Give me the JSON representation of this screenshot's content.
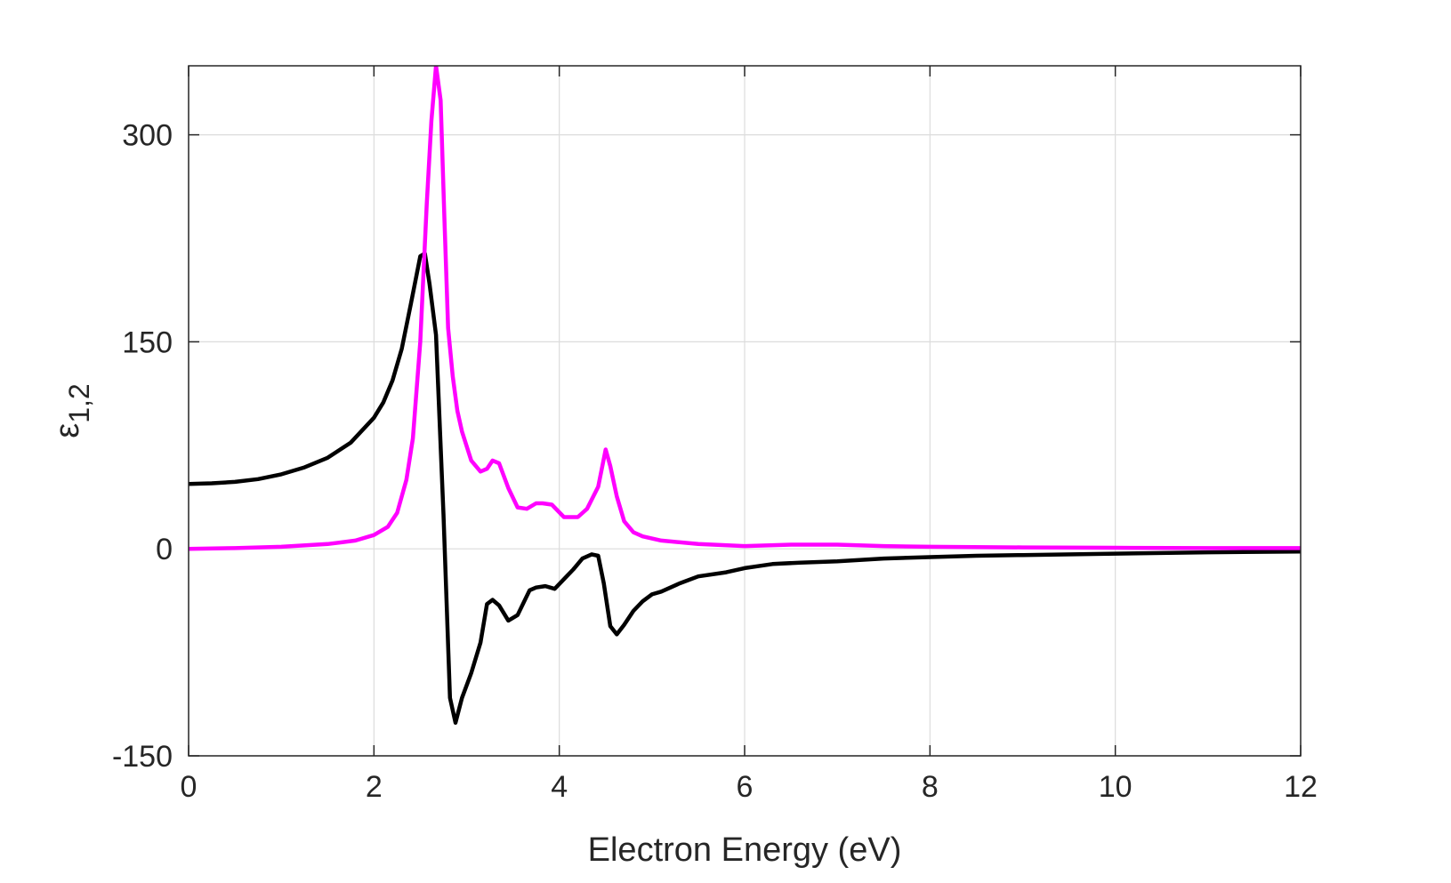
{
  "chart_data": {
    "type": "line",
    "title": "",
    "xlabel": "Electron Energy (eV)",
    "ylabel": "ε",
    "ylabel_subscript": "1,2",
    "xlim": [
      0,
      12
    ],
    "ylim": [
      -150,
      350
    ],
    "xticks": [
      0,
      2,
      4,
      6,
      8,
      10,
      12
    ],
    "xtick_labels": [
      "0",
      "2",
      "4",
      "6",
      "8",
      "10",
      "12"
    ],
    "yticks": [
      -150,
      0,
      150,
      300
    ],
    "ytick_labels": [
      "-150",
      "0",
      "150",
      "300"
    ],
    "grid": true,
    "legend": "none",
    "series": [
      {
        "color": "#000000",
        "x": [
          0,
          0.25,
          0.5,
          0.75,
          1.0,
          1.25,
          1.5,
          1.75,
          2.0,
          2.1,
          2.2,
          2.3,
          2.4,
          2.5,
          2.55,
          2.6,
          2.67,
          2.75,
          2.82,
          2.88,
          2.95,
          3.05,
          3.15,
          3.22,
          3.28,
          3.35,
          3.45,
          3.55,
          3.68,
          3.75,
          3.85,
          3.95,
          4.05,
          4.15,
          4.25,
          4.35,
          4.42,
          4.48,
          4.55,
          4.62,
          4.7,
          4.8,
          4.9,
          5.0,
          5.1,
          5.3,
          5.5,
          5.8,
          6.0,
          6.3,
          6.6,
          7.0,
          7.5,
          8.0,
          8.5,
          9.0,
          10.0,
          11.0,
          12.0
        ],
        "y": [
          47,
          47.5,
          48.5,
          50.5,
          54,
          59,
          66,
          77,
          95,
          106,
          122,
          145,
          178,
          212,
          214,
          192,
          155,
          25,
          -108,
          -126,
          -108,
          -90,
          -68,
          -40,
          -37,
          -41,
          -52,
          -48,
          -30,
          -28,
          -27,
          -29,
          -22,
          -15,
          -7,
          -4,
          -5,
          -25,
          -56,
          -62,
          -55,
          -45,
          -38,
          -33,
          -31,
          -25,
          -20,
          -17,
          -14,
          -11,
          -10,
          -9,
          -7,
          -6,
          -5,
          -4.5,
          -3.5,
          -2.5,
          -2
        ]
      },
      {
        "color": "#ff00ff",
        "x": [
          0,
          0.5,
          1.0,
          1.5,
          1.8,
          2.0,
          2.15,
          2.25,
          2.35,
          2.42,
          2.5,
          2.57,
          2.62,
          2.67,
          2.72,
          2.76,
          2.8,
          2.85,
          2.9,
          2.95,
          3.05,
          3.15,
          3.22,
          3.28,
          3.35,
          3.45,
          3.55,
          3.65,
          3.75,
          3.82,
          3.92,
          4.05,
          4.2,
          4.3,
          4.42,
          4.5,
          4.55,
          4.62,
          4.7,
          4.8,
          4.9,
          5.1,
          5.5,
          6.0,
          6.5,
          7.0,
          7.5,
          8.0,
          9.0,
          10.0,
          11.0,
          12.0
        ],
        "y": [
          0,
          0.5,
          1.5,
          3.5,
          6,
          10,
          16,
          26,
          50,
          80,
          150,
          250,
          310,
          350,
          325,
          240,
          160,
          125,
          100,
          85,
          64,
          56,
          58,
          64,
          62,
          44,
          30,
          29,
          33,
          33,
          32,
          23,
          23,
          29,
          45,
          72,
          60,
          38,
          20,
          12,
          9,
          6,
          3.5,
          2,
          3,
          3,
          2,
          1.5,
          1,
          0.8,
          0.5,
          0.5
        ]
      }
    ]
  }
}
